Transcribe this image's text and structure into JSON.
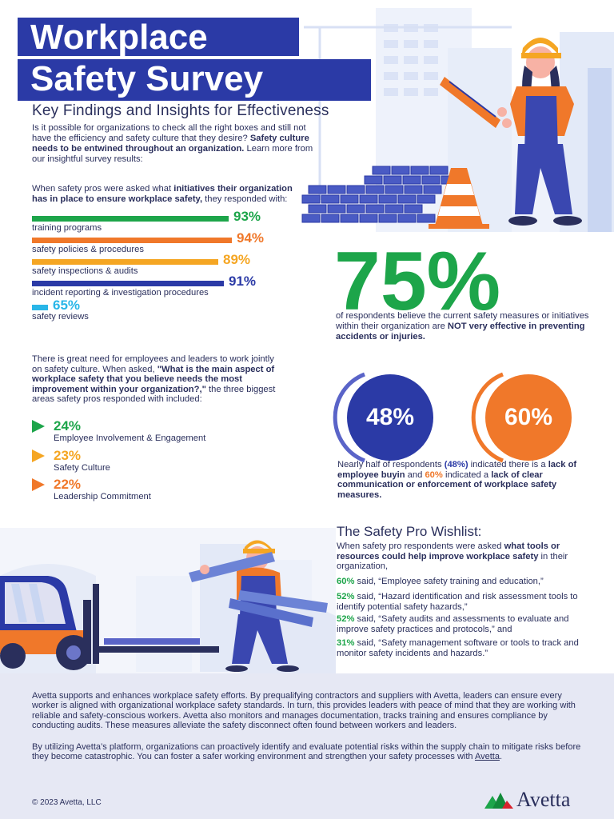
{
  "header": {
    "title_line1": "Workplace",
    "title_line2": "Safety Survey",
    "subtitle": "Key Findings and Insights for Effectiveness"
  },
  "intro": {
    "text": "Is it possible for organizations to check all the right boxes and still not have the efficiency and safety culture that they desire? ",
    "bold": "Safety culture needs to be entwined throughout an organization.",
    "tail": " Learn more from our insightful survey results:"
  },
  "initiatives": {
    "question_pre": "When safety pros were asked what ",
    "question_bold": "initiatives their organization has in place to ensure workplace safety,",
    "question_post": " they responded with:",
    "items": [
      {
        "label": "training programs",
        "value": "93%",
        "color": "#1da54a"
      },
      {
        "label": "safety policies &  procedures",
        "value": "94%",
        "color": "#f0782a"
      },
      {
        "label": "safety inspections & audits",
        "value": "89%",
        "color": "#f5a623"
      },
      {
        "label": "incident reporting & investigation procedures",
        "value": "91%",
        "color": "#2b3aa6"
      },
      {
        "label": "safety reviews",
        "value": "65%",
        "color": "#29b6e8"
      }
    ]
  },
  "stat75": {
    "value": "75%",
    "text": "of respondents believe the current safety measures or initiatives within their organization are ",
    "bold": "NOT very effective in preventing accidents or injuries."
  },
  "improvement": {
    "q_pre": "There is great need for employees and leaders to work jointly on safety culture. When asked, ",
    "q_bold": "\"What is the main aspect of workplace safety that you believe needs the most improvement within your organization?,\"",
    "q_post": " the three biggest areas safety pros responded with included:",
    "items": [
      {
        "value": "24%",
        "label": "Employee Involvement & Engagement",
        "color": "#1da54a"
      },
      {
        "value": "23%",
        "label": "Safety Culture",
        "color": "#f5a623"
      },
      {
        "value": "22%",
        "label": "Leadership Commitment",
        "color": "#f0782a"
      }
    ]
  },
  "circles": {
    "left": {
      "value": "48%",
      "color": "#2b3aa6",
      "ring": "#5a64c8"
    },
    "right": {
      "value": "60%",
      "color": "#f0782a",
      "ring": "#f0782a"
    }
  },
  "circles_desc": {
    "p1": "Nearly half of respondents ",
    "p1_val": "(48%)",
    "p2": " indicated there is a ",
    "b1": "lack of  employee buyin",
    "p3": " and ",
    "p3_val": "60%",
    "p4": " indicated a ",
    "b2": "lack of clear communication or enforcement of workplace safety measures."
  },
  "wishlist": {
    "title": "The Safety Pro Wishlist:",
    "intro_pre": "When safety pro respondents were asked ",
    "intro_bold": "what tools or resources could help improve workplace safety",
    "intro_post": " in their organization,",
    "items": [
      {
        "value": "60%",
        "text": " said, “Employee safety training and education,”"
      },
      {
        "value": "52%",
        "text": " said, “Hazard identification and risk assessment tools to identify potential safety hazards,”"
      },
      {
        "value": "52%",
        "text": " said, “Safety audits and assessments to evaluate and improve safety practices and protocols,” and"
      },
      {
        "value": "31%",
        "text": " said, “Safety management software or tools to track and monitor safety incidents and hazards.”"
      }
    ]
  },
  "footer": {
    "p1": "Avetta supports and enhances workplace safety efforts. By prequalifying contractors and suppliers with Avetta, leaders can ensure every worker is aligned with organizational workplace safety standards. In turn, this provides leaders with peace of mind that they are working with reliable and safety-conscious workers. Avetta also monitors and manages documentation, tracks training and ensures compliance by conducting audits. These measures alleviate the safety disconnect often found between workers and leaders.",
    "p2_pre": "By utilizing Avetta’s platform, organizations can proactively identify and evaluate potential risks within the supply chain to mitigate risks before they become catastrophic. You can foster a safer working environment and strengthen your safety processes with ",
    "p2_link": "Avetta",
    "p2_post": ".",
    "copyright": "© 2023 Avetta, LLC",
    "logo_text": "Avetta"
  },
  "illustrations": {
    "top": "worker-with-level-illustration",
    "bottom": "worker-carrying-planks-forklift-illustration"
  }
}
